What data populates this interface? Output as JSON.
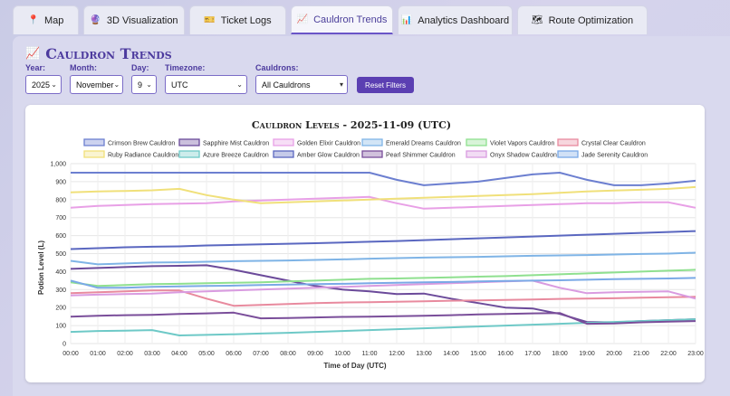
{
  "tabs": [
    {
      "icon": "📍",
      "label": "Map",
      "active": false
    },
    {
      "icon": "🔮",
      "label": "3D Visualization",
      "active": false
    },
    {
      "icon": "🎫",
      "label": "Ticket Logs",
      "active": false
    },
    {
      "icon": "📈",
      "label": "Cauldron Trends",
      "active": true
    },
    {
      "icon": "📊",
      "label": "Analytics Dashboard",
      "active": false
    },
    {
      "icon": "🗺",
      "label": "Route Optimization",
      "active": false
    }
  ],
  "page": {
    "title_icon": "📈",
    "title": "Cauldron Trends"
  },
  "filters": {
    "year": {
      "label": "Year:",
      "value": "2025"
    },
    "month": {
      "label": "Month:",
      "value": "November"
    },
    "day": {
      "label": "Day:",
      "value": "9"
    },
    "timezone": {
      "label": "Timezone:",
      "value": "UTC"
    },
    "cauldrons": {
      "label": "Cauldrons:",
      "value": "All Cauldrons"
    },
    "reset_label": "Reset Filters"
  },
  "chart_data": {
    "type": "line",
    "title": "Cauldron Levels - 2025-11-09 (UTC)",
    "xlabel": "Time of Day (UTC)",
    "ylabel": "Potion Level (L)",
    "ylim": [
      0,
      1000
    ],
    "yticks": [
      "0",
      "100",
      "200",
      "300",
      "400",
      "500",
      "600",
      "700",
      "800",
      "900",
      "1,000"
    ],
    "x": [
      "00:00",
      "01:00",
      "02:00",
      "03:00",
      "04:00",
      "05:00",
      "06:00",
      "07:00",
      "08:00",
      "09:00",
      "10:00",
      "11:00",
      "12:00",
      "13:00",
      "14:00",
      "15:00",
      "16:00",
      "17:00",
      "18:00",
      "19:00",
      "20:00",
      "21:00",
      "22:00",
      "23:00"
    ],
    "grid": true,
    "legend_position": "top",
    "series": [
      {
        "name": "Crimson Brew Cauldron",
        "color": "#6c7fd0",
        "values": [
          950,
          950,
          950,
          950,
          950,
          950,
          950,
          950,
          950,
          950,
          950,
          950,
          910,
          880,
          890,
          900,
          920,
          940,
          950,
          910,
          880,
          880,
          890,
          905
        ]
      },
      {
        "name": "Sapphire Mist Cauldron",
        "color": "#6b4a9a",
        "values": [
          415,
          420,
          425,
          430,
          432,
          435,
          410,
          380,
          350,
          320,
          300,
          290,
          275,
          278,
          250,
          225,
          200,
          195,
          165,
          120,
          118,
          125,
          130,
          135
        ]
      },
      {
        "name": "Golden Elixir Cauldron",
        "color": "#e8a0e6",
        "values": [
          755,
          765,
          770,
          775,
          778,
          780,
          790,
          795,
          800,
          805,
          810,
          815,
          780,
          750,
          755,
          760,
          765,
          770,
          775,
          780,
          780,
          785,
          785,
          755
        ]
      },
      {
        "name": "Emerald Dreams Cauldron",
        "color": "#7fb4e6",
        "values": [
          460,
          440,
          445,
          450,
          452,
          455,
          458,
          460,
          462,
          465,
          468,
          472,
          475,
          478,
          480,
          482,
          485,
          488,
          490,
          492,
          495,
          498,
          500,
          505
        ]
      },
      {
        "name": "Violet Vapors Cauldron",
        "color": "#8fe08f",
        "values": [
          340,
          320,
          325,
          330,
          332,
          335,
          338,
          340,
          345,
          350,
          355,
          360,
          362,
          365,
          368,
          372,
          375,
          380,
          385,
          390,
          395,
          400,
          405,
          410
        ]
      },
      {
        "name": "Crystal Clear Cauldron",
        "color": "#e88a9e",
        "values": [
          280,
          285,
          290,
          295,
          295,
          250,
          210,
          215,
          220,
          225,
          228,
          230,
          232,
          235,
          238,
          240,
          242,
          245,
          248,
          250,
          252,
          255,
          258,
          260
        ]
      },
      {
        "name": "Ruby Radiance Cauldron",
        "color": "#f0e07a",
        "values": [
          840,
          845,
          848,
          852,
          860,
          825,
          800,
          780,
          785,
          790,
          795,
          800,
          805,
          810,
          815,
          820,
          825,
          830,
          838,
          845,
          850,
          855,
          860,
          870
        ]
      },
      {
        "name": "Azure Breeze Cauldron",
        "color": "#6ec9c7",
        "values": [
          65,
          70,
          72,
          75,
          45,
          48,
          52,
          56,
          60,
          65,
          70,
          75,
          80,
          85,
          90,
          95,
          100,
          105,
          110,
          115,
          120,
          125,
          130,
          135
        ]
      },
      {
        "name": "Amber Glow Cauldron",
        "color": "#5a67c0",
        "values": [
          525,
          530,
          535,
          538,
          540,
          545,
          548,
          552,
          555,
          558,
          562,
          566,
          570,
          575,
          580,
          585,
          590,
          595,
          600,
          605,
          610,
          615,
          620,
          625
        ]
      },
      {
        "name": "Pearl Shimmer Cauldron",
        "color": "#7a4e9a",
        "values": [
          150,
          155,
          158,
          160,
          165,
          168,
          172,
          140,
          142,
          145,
          148,
          150,
          152,
          155,
          158,
          162,
          165,
          168,
          170,
          110,
          112,
          118,
          122,
          125
        ]
      },
      {
        "name": "Onyx Shadow Cauldron",
        "color": "#d99be0",
        "values": [
          268,
          272,
          275,
          278,
          285,
          290,
          295,
          300,
          305,
          310,
          315,
          320,
          325,
          330,
          335,
          340,
          345,
          350,
          310,
          280,
          285,
          288,
          290,
          250
        ]
      },
      {
        "name": "Jade Serenity Cauldron",
        "color": "#7aa9e6",
        "values": [
          350,
          310,
          310,
          315,
          318,
          320,
          322,
          325,
          328,
          330,
          332,
          335,
          338,
          340,
          342,
          345,
          348,
          350,
          352,
          355,
          358,
          360,
          362,
          365
        ]
      }
    ]
  }
}
